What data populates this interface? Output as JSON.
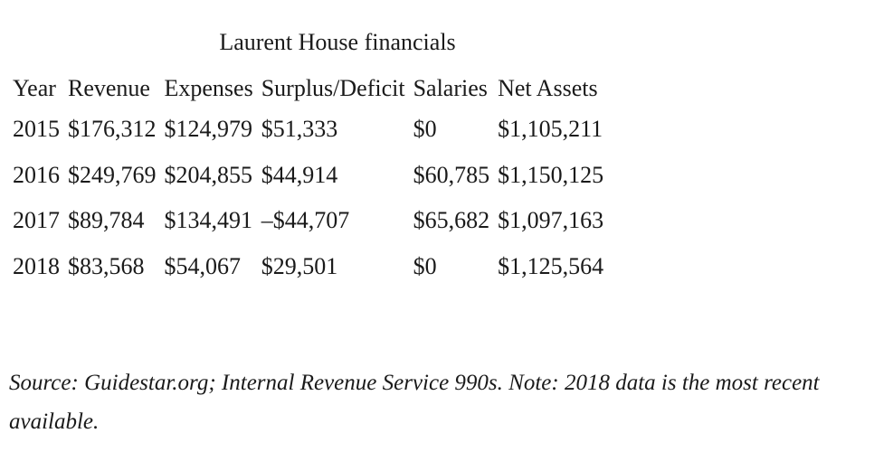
{
  "table": {
    "caption": "Laurent House financials",
    "headers": [
      "Year",
      "Revenue",
      "Expenses",
      "Surplus/Deficit",
      "Salaries",
      "Net Assets"
    ],
    "rows": [
      [
        "2015",
        "$176,312",
        "$124,979",
        "$51,333",
        "$0",
        "$1,105,211"
      ],
      [
        "2016",
        "$249,769",
        "$204,855",
        "$44,914",
        "$60,785",
        "$1,150,125"
      ],
      [
        "2017",
        "$89,784",
        "$134,491",
        "–$44,707",
        "$65,682",
        "$1,097,163"
      ],
      [
        "2018",
        "$83,568",
        "$54,067",
        "$29,501",
        "$0",
        "$1,125,564"
      ]
    ]
  },
  "note": "Source: Guidestar.org; Internal Revenue Service 990s. Note: 2018 data is the most recent available."
}
